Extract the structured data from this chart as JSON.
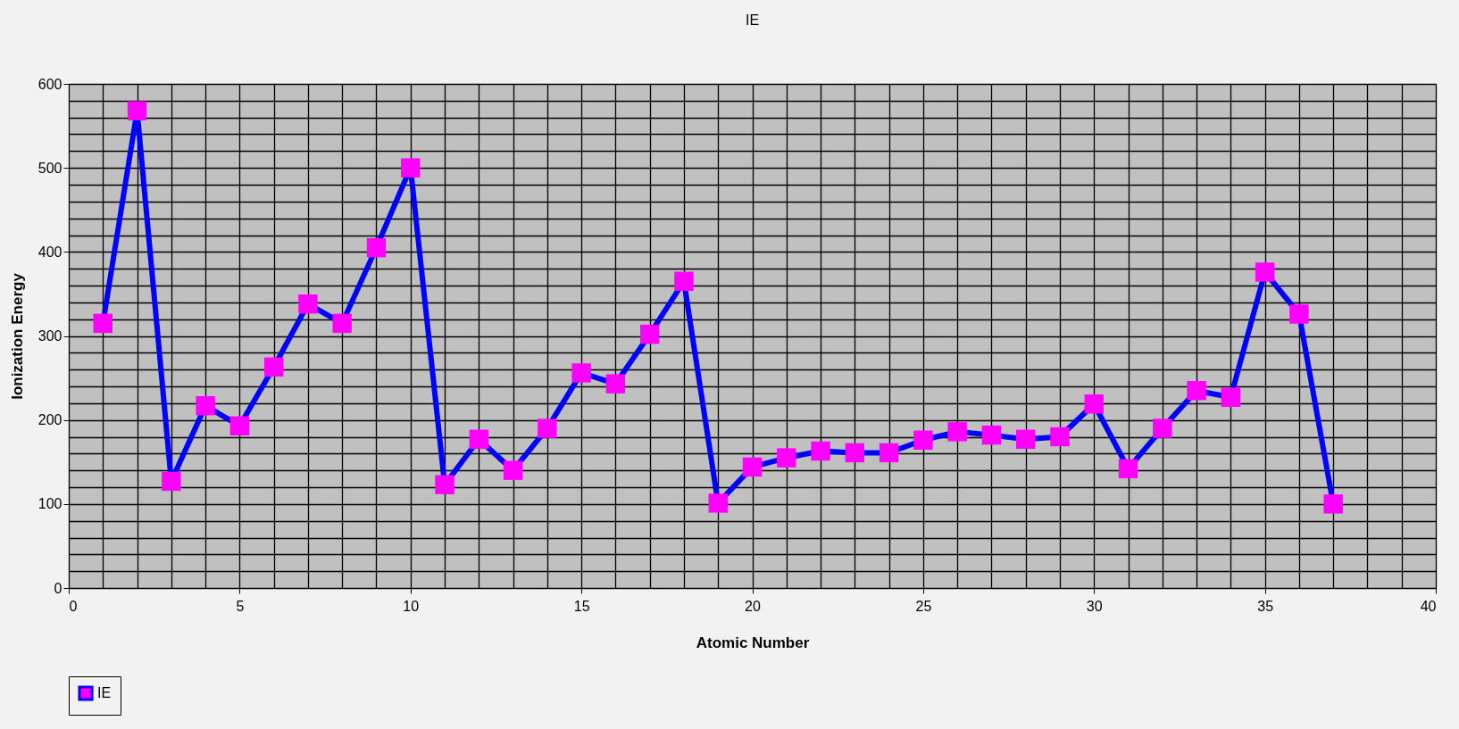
{
  "chart_data": {
    "type": "line",
    "title": "IE",
    "xlabel": "Atomic Number",
    "ylabel": "Ionization Energy",
    "series": [
      {
        "name": "IE",
        "color": "#0000ff",
        "colors": [
          "#ff00ff",
          "#ff00ff",
          "#ff00ff",
          "#ff00ff",
          "#ff00ff",
          "#ff00ff",
          "#ff00ff",
          "#ff00ff",
          "#ff00ff",
          "#ff00ff",
          "#ff00ff",
          "#ff00ff",
          "#ff00ff",
          "#ff00ff",
          "#ff00ff",
          "#ff00ff",
          "#ff00ff",
          "#ff00ff",
          "#ff00ff",
          "#ff00ff",
          "#ff00ff",
          "#ff00ff",
          "#ff00ff",
          "#ff00ff",
          "#ff00ff",
          "#ff00ff",
          "#ff00ff",
          "#ff00ff",
          "#ff00ff",
          "#ff00ff",
          "#ff00ff",
          "#ff00ff",
          "#ff00ff",
          "#ff00ff",
          "#ff00ff",
          "#ff00ff",
          "#ff00ff"
        ],
        "x": [
          1,
          2,
          3,
          4,
          5,
          6,
          7,
          8,
          9,
          10,
          11,
          12,
          13,
          14,
          15,
          16,
          17,
          18,
          19,
          20,
          21,
          22,
          23,
          24,
          25,
          26,
          27,
          28,
          29,
          30,
          31,
          32,
          33,
          34,
          35,
          36,
          37
        ],
        "values": [
          315,
          568,
          127,
          217,
          193,
          263,
          338,
          315,
          405,
          500,
          123,
          177,
          140,
          190,
          256,
          243,
          302,
          365,
          101,
          144,
          155,
          163,
          161,
          161,
          176,
          186,
          182,
          177,
          180,
          219,
          142,
          190,
          235,
          227,
          376,
          326,
          100
        ]
      }
    ],
    "xlim": [
      0,
      40
    ],
    "xticks": [
      0,
      5,
      10,
      15,
      20,
      25,
      30,
      35,
      40
    ],
    "ylim": [
      0,
      600
    ],
    "yticks": [
      0,
      100,
      200,
      300,
      400,
      500,
      600
    ],
    "grid": true,
    "legend": "bottom",
    "marker": "square",
    "line_style": "solid"
  }
}
